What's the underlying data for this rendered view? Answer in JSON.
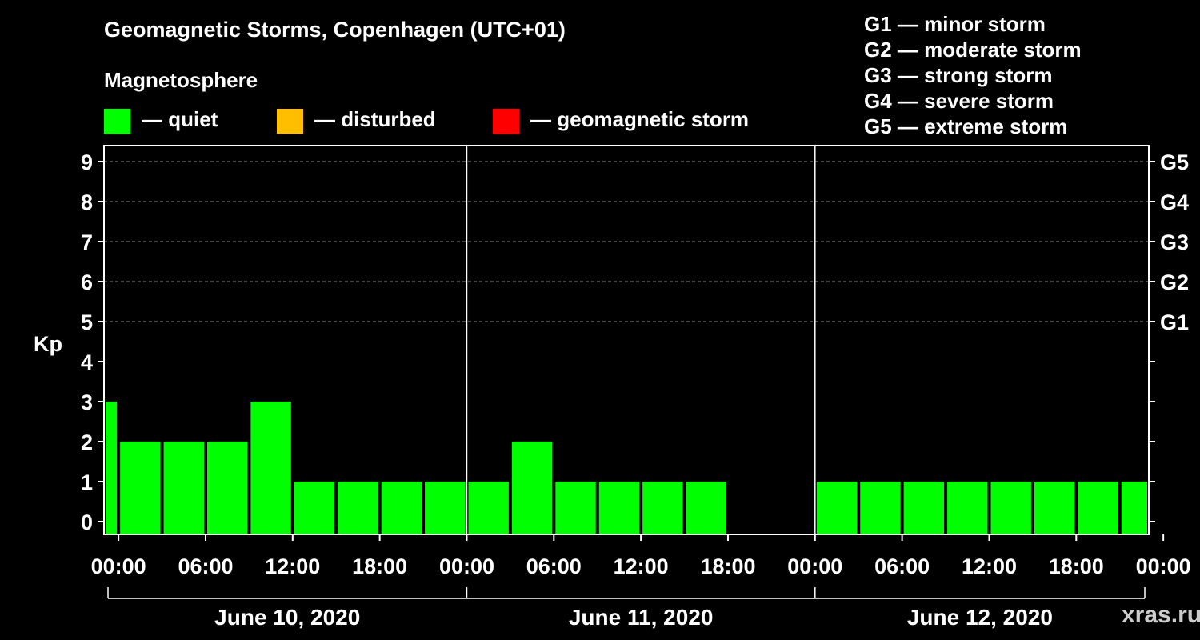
{
  "title": "Geomagnetic Storms, Copenhagen (UTC+01)",
  "subtitle": "Magnetosphere",
  "legend": [
    {
      "label": "— quiet",
      "color": "#00ff00"
    },
    {
      "label": "— disturbed",
      "color": "#ffbf00"
    },
    {
      "label": "— geomagnetic storm",
      "color": "#ff0000"
    }
  ],
  "storm_scale": [
    "G1 — minor storm",
    "G2 — moderate storm",
    "G3 — strong storm",
    "G4 — severe storm",
    "G5 — extreme storm"
  ],
  "watermark": "xras.ru",
  "chart_data": {
    "type": "bar",
    "title": "Geomagnetic Storms, Copenhagen (UTC+01)",
    "ylabel": "Kp",
    "ylim": [
      0,
      9
    ],
    "yticks": [
      "0",
      "1",
      "2",
      "3",
      "4",
      "5",
      "6",
      "7",
      "8",
      "9"
    ],
    "right_axis_labels": [
      {
        "kp": 5,
        "label": "G1"
      },
      {
        "kp": 6,
        "label": "G2"
      },
      {
        "kp": 7,
        "label": "G3"
      },
      {
        "kp": 8,
        "label": "G4"
      },
      {
        "kp": 9,
        "label": "G5"
      }
    ],
    "grid": true,
    "x_hours_range": [
      -1,
      71
    ],
    "xticks": [
      {
        "hour": 0,
        "label": "00:00"
      },
      {
        "hour": 6,
        "label": "06:00"
      },
      {
        "hour": 12,
        "label": "12:00"
      },
      {
        "hour": 18,
        "label": "18:00"
      },
      {
        "hour": 24,
        "label": "00:00"
      },
      {
        "hour": 30,
        "label": "06:00"
      },
      {
        "hour": 36,
        "label": "12:00"
      },
      {
        "hour": 42,
        "label": "18:00"
      },
      {
        "hour": 48,
        "label": "00:00"
      },
      {
        "hour": 54,
        "label": "06:00"
      },
      {
        "hour": 60,
        "label": "12:00"
      },
      {
        "hour": 66,
        "label": "18:00"
      },
      {
        "hour": 72,
        "label": "00:00"
      }
    ],
    "days": [
      {
        "label": "June 10, 2020",
        "start_hour": -1,
        "end_hour": 23
      },
      {
        "label": "June 11, 2020",
        "start_hour": 23,
        "end_hour": 47
      },
      {
        "label": "June 12, 2020",
        "start_hour": 47,
        "end_hour": 71
      }
    ],
    "bars": [
      {
        "start_hour": -1,
        "end_hour": 0,
        "kp": 3,
        "level": "quiet"
      },
      {
        "start_hour": 0,
        "end_hour": 3,
        "kp": 2,
        "level": "quiet"
      },
      {
        "start_hour": 3,
        "end_hour": 6,
        "kp": 2,
        "level": "quiet"
      },
      {
        "start_hour": 6,
        "end_hour": 9,
        "kp": 2,
        "level": "quiet"
      },
      {
        "start_hour": 9,
        "end_hour": 12,
        "kp": 3,
        "level": "quiet"
      },
      {
        "start_hour": 12,
        "end_hour": 15,
        "kp": 1,
        "level": "quiet"
      },
      {
        "start_hour": 15,
        "end_hour": 18,
        "kp": 1,
        "level": "quiet"
      },
      {
        "start_hour": 18,
        "end_hour": 21,
        "kp": 1,
        "level": "quiet"
      },
      {
        "start_hour": 21,
        "end_hour": 24,
        "kp": 1,
        "level": "quiet"
      },
      {
        "start_hour": 24,
        "end_hour": 27,
        "kp": 1,
        "level": "quiet"
      },
      {
        "start_hour": 27,
        "end_hour": 30,
        "kp": 2,
        "level": "quiet"
      },
      {
        "start_hour": 30,
        "end_hour": 33,
        "kp": 1,
        "level": "quiet"
      },
      {
        "start_hour": 33,
        "end_hour": 36,
        "kp": 1,
        "level": "quiet"
      },
      {
        "start_hour": 36,
        "end_hour": 39,
        "kp": 1,
        "level": "quiet"
      },
      {
        "start_hour": 39,
        "end_hour": 42,
        "kp": 1,
        "level": "quiet"
      },
      {
        "start_hour": 48,
        "end_hour": 51,
        "kp": 1,
        "level": "quiet"
      },
      {
        "start_hour": 51,
        "end_hour": 54,
        "kp": 1,
        "level": "quiet"
      },
      {
        "start_hour": 54,
        "end_hour": 57,
        "kp": 1,
        "level": "quiet"
      },
      {
        "start_hour": 57,
        "end_hour": 60,
        "kp": 1,
        "level": "quiet"
      },
      {
        "start_hour": 60,
        "end_hour": 63,
        "kp": 1,
        "level": "quiet"
      },
      {
        "start_hour": 63,
        "end_hour": 66,
        "kp": 1,
        "level": "quiet"
      },
      {
        "start_hour": 66,
        "end_hour": 69,
        "kp": 1,
        "level": "quiet"
      },
      {
        "start_hour": 69,
        "end_hour": 71,
        "kp": 1,
        "level": "quiet"
      }
    ],
    "level_colors": {
      "quiet": "#00ff00",
      "disturbed": "#ffbf00",
      "storm": "#ff0000"
    }
  }
}
